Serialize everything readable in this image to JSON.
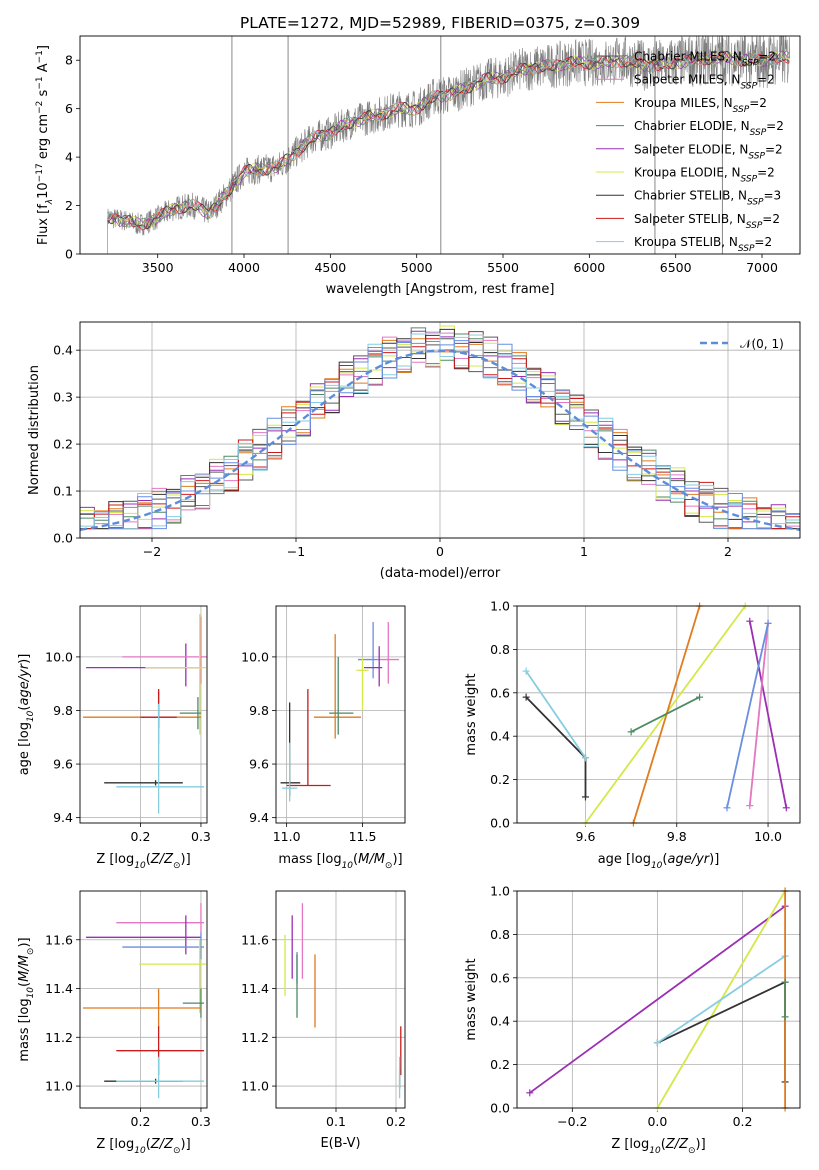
{
  "figure": {
    "title": "PLATE=1272, MJD=52989, FIBERID=0375, z=0.309"
  },
  "palette": {
    "Chabrier MILES": "#5a5a5a",
    "Salpeter MILES": "#e377c2",
    "Kroupa MILES": "#e07b1f",
    "Chabrier ELODIE": "#4f8a65",
    "Salpeter ELODIE": "#9b2fb3",
    "Kroupa ELODIE": "#d4e84a",
    "Chabrier STELIB": "#333333",
    "Salpeter STELIB": "#c91b1b",
    "Kroupa STELIB": "#86cee0",
    "extra_blue": "#6a8ee0",
    "data_gray": "#7f7f7f",
    "normal_curve": "#5b8ddb"
  },
  "chart_data": [
    {
      "id": "spectrum",
      "type": "line",
      "title": "PLATE=1272, MJD=52989, FIBERID=0375, z=0.309",
      "xlabel": "wavelength [Angstrom, rest frame]",
      "ylabel": "Flux [f$_\\lambda$10$^{-17}$ erg cm$^{-2}$ s$^{-1}$ A$^{-1}$]",
      "ylabel_parts": [
        "Flux [f",
        "λ",
        "10",
        "−17",
        " erg cm",
        "−2",
        " s",
        "−1",
        " A",
        "−1",
        "]"
      ],
      "xlim": [
        3050,
        7220
      ],
      "ylim": [
        0,
        9
      ],
      "xticks": [
        3500,
        4000,
        4500,
        5000,
        5500,
        6000,
        6500,
        7000
      ],
      "yticks": [
        0,
        2,
        4,
        6,
        8
      ],
      "grid": false,
      "legend_placement": "top-right",
      "continuum_anchors": {
        "x": [
          3210,
          3300,
          3400,
          3500,
          3600,
          3700,
          3800,
          3900,
          4000,
          4100,
          4200,
          4300,
          4400,
          4500,
          4600,
          4700,
          4800,
          4900,
          5000,
          5100,
          5200,
          5300,
          5400,
          5500,
          5600,
          5700,
          5800,
          5900,
          6000,
          6100,
          6200,
          6300,
          6400,
          6500,
          6600,
          6700,
          6800,
          6900,
          7000,
          7100,
          7160
        ],
        "y": [
          1.5,
          1.4,
          1.2,
          1.5,
          1.9,
          2.0,
          1.7,
          2.5,
          3.4,
          3.5,
          3.6,
          4.2,
          4.8,
          5.0,
          5.4,
          5.6,
          5.8,
          6.0,
          6.0,
          6.5,
          6.6,
          6.9,
          7.2,
          7.3,
          7.6,
          7.7,
          7.8,
          7.9,
          7.9,
          7.9,
          8.0,
          7.8,
          7.8,
          7.9,
          8.0,
          8.1,
          8.1,
          8.0,
          8.0,
          8.1,
          8.1
        ]
      },
      "vlines": [
        3930,
        4255,
        5140,
        6380,
        6770
      ],
      "series": [
        {
          "name": "Chabrier MILES, N$_{SSP}$=2",
          "label": "Chabrier MILES, N",
          "sub": "SSP",
          "suffix": "=2"
        },
        {
          "name": "Salpeter MILES, N$_{SSP}$=2",
          "label": "Salpeter MILES, N",
          "sub": "SSP",
          "suffix": "=2"
        },
        {
          "name": "Kroupa MILES, N$_{SSP}$=2",
          "label": "Kroupa MILES, N",
          "sub": "SSP",
          "suffix": "=2"
        },
        {
          "name": "Chabrier ELODIE, N$_{SSP}$=2",
          "label": "Chabrier ELODIE, N",
          "sub": "SSP",
          "suffix": "=2"
        },
        {
          "name": "Salpeter ELODIE, N$_{SSP}$=2",
          "label": "Salpeter ELODIE, N",
          "sub": "SSP",
          "suffix": "=2"
        },
        {
          "name": "Kroupa ELODIE, N$_{SSP}$=2",
          "label": "Kroupa ELODIE, N",
          "sub": "SSP",
          "suffix": "=2"
        },
        {
          "name": "Chabrier STELIB, N$_{SSP}$=3",
          "label": "Chabrier STELIB, N",
          "sub": "SSP",
          "suffix": "=3"
        },
        {
          "name": "Salpeter STELIB, N$_{SSP}$=2",
          "label": "Salpeter STELIB, N",
          "sub": "SSP",
          "suffix": "=2"
        },
        {
          "name": "Kroupa STELIB, N$_{SSP}$=2",
          "label": "Kroupa STELIB, N",
          "sub": "SSP",
          "suffix": "=2"
        }
      ]
    },
    {
      "id": "residuals",
      "type": "histogram",
      "xlabel": "(data-model)/error",
      "ylabel": "Normed distribution",
      "xlim": [
        -2.5,
        2.5
      ],
      "ylim": [
        0,
        0.46
      ],
      "xticks": [
        -2,
        -1,
        0,
        1,
        2
      ],
      "yticks": [
        0.0,
        0.1,
        0.2,
        0.3,
        0.4
      ],
      "grid": true,
      "bin_width": 0.1,
      "curve": {
        "name": "$\\mathcal{N}(0,1)$",
        "label": "𝒩(0, 1)",
        "mu": 0,
        "sigma": 1
      },
      "legend_placement": "top-right",
      "jitter": [
        0.03,
        -0.04,
        0.012,
        -0.02,
        0.045,
        -0.01,
        0.025,
        -0.035,
        0.005,
        0.038,
        -0.028,
        0.018,
        -0.042,
        0.032,
        -0.006,
        0.022
      ]
    },
    {
      "id": "age_vs_Z",
      "type": "errorbar",
      "xlabel": "Z [log$_{10}$(Z/Z$_\\odot$)]",
      "ylabel": "age  [log$_{10}$(age/yr)]",
      "xlim": [
        0.1,
        0.31
      ],
      "ylim": [
        9.38,
        10.19
      ],
      "xticks": [
        0.2,
        0.3
      ],
      "yticks": [
        9.4,
        9.6,
        9.8,
        10.0
      ],
      "grid": true,
      "points": [
        {
          "series": "Salpeter ELODIE",
          "x": 0.275,
          "y": 9.96,
          "xerr": [
            0.165,
            0.025
          ],
          "yerr": [
            0.07,
            0.09
          ]
        },
        {
          "series": "Salpeter MILES",
          "x": 0.3,
          "y": 10.0,
          "xerr": [
            0.13,
            0.01
          ],
          "yerr": [
            0.1,
            0.15
          ]
        },
        {
          "series": "Kroupa ELODIE",
          "x": 0.298,
          "y": 9.96,
          "xerr": [
            0.09,
            0.01
          ],
          "yerr": [
            0.25,
            0.2
          ]
        },
        {
          "series": "Kroupa MILES",
          "x": 0.23,
          "y": 9.775,
          "xerr": [
            0.125,
            0.07
          ],
          "yerr": [
            0.1,
            0.1
          ]
        },
        {
          "series": "Salpeter STELIB",
          "x": 0.23,
          "y": 9.775,
          "xerr": [
            0.03,
            0.03
          ],
          "yerr": [
            0.04,
            0.105
          ]
        },
        {
          "series": "Chabrier ELODIE",
          "x": 0.295,
          "y": 9.79,
          "xerr": [
            0.03,
            0.005
          ],
          "yerr": [
            0.06,
            0.06
          ]
        },
        {
          "series": "Chabrier STELIB",
          "x": 0.225,
          "y": 9.53,
          "xerr": [
            0.085,
            0.045
          ],
          "yerr": [
            0.01,
            0.01
          ]
        },
        {
          "series": "Kroupa STELIB",
          "x": 0.23,
          "y": 9.515,
          "xerr": [
            0.07,
            0.075
          ],
          "yerr": [
            0.1,
            0.31
          ]
        }
      ]
    },
    {
      "id": "age_vs_mass",
      "type": "errorbar",
      "xlabel": "mass [log$_{10}$(M/M$_\\odot$)]",
      "xlim": [
        10.93,
        11.78
      ],
      "ylim": [
        9.38,
        10.19
      ],
      "xticks": [
        11.0,
        11.5
      ],
      "yticks": [
        9.4,
        9.6,
        9.8,
        10.0
      ],
      "grid": true,
      "points": [
        {
          "series": "Salpeter MILES",
          "x": 11.67,
          "y": 9.99,
          "xerr": [
            0.07,
            0.07
          ],
          "yerr": [
            0.09,
            0.14
          ]
        },
        {
          "series": "extra_blue",
          "x": 11.57,
          "y": 9.99,
          "xerr": [
            0.1,
            0.03
          ],
          "yerr": [
            0.07,
            0.14
          ]
        },
        {
          "series": "Salpeter ELODIE",
          "x": 11.61,
          "y": 9.96,
          "xerr": [
            0.1,
            0.02
          ],
          "yerr": [
            0.07,
            0.08
          ]
        },
        {
          "series": "Kroupa ELODIE",
          "x": 11.5,
          "y": 9.95,
          "xerr": [
            0.04,
            0.04
          ],
          "yerr": [
            0.15,
            0.05
          ]
        },
        {
          "series": "Kroupa MILES",
          "x": 11.32,
          "y": 9.775,
          "xerr": [
            0.14,
            0.17
          ],
          "yerr": [
            0.08,
            0.31
          ]
        },
        {
          "series": "Chabrier ELODIE",
          "x": 11.34,
          "y": 9.79,
          "xerr": [
            0.06,
            0.1
          ],
          "yerr": [
            0.08,
            0.21
          ]
        },
        {
          "series": "Salpeter STELIB",
          "x": 11.14,
          "y": 9.52,
          "xerr": [
            0.14,
            0.15
          ],
          "yerr": [
            0.0,
            0.36
          ]
        },
        {
          "series": "Chabrier STELIB",
          "x": 11.02,
          "y": 9.53,
          "xerr": [
            0.06,
            0.07
          ],
          "yerr": [
            0.05,
            0.3
          ]
        },
        {
          "series": "Kroupa STELIB",
          "x": 11.02,
          "y": 9.51,
          "xerr": [
            0.05,
            0.05
          ],
          "yerr": [
            0.05,
            0.17
          ]
        }
      ]
    },
    {
      "id": "mass_weight_vs_age",
      "type": "line",
      "xlabel": "age  [log$_{10}$(age/yr)]",
      "ylabel": "mass weight",
      "xlim": [
        9.45,
        10.07
      ],
      "ylim": [
        0,
        1
      ],
      "xticks": [
        9.6,
        9.8,
        10.0
      ],
      "yticks": [
        0.0,
        0.2,
        0.4,
        0.6,
        0.8,
        1.0
      ],
      "grid": true,
      "lines": [
        {
          "series": "Kroupa ELODIE",
          "x": [
            9.6,
            9.95
          ],
          "y": [
            0.0,
            1.0
          ]
        },
        {
          "series": "Kroupa MILES",
          "x": [
            9.705,
            9.85
          ],
          "y": [
            0.0,
            1.0
          ]
        },
        {
          "series": "Salpeter ELODIE",
          "x": [
            9.96,
            10.04
          ],
          "y": [
            0.93,
            0.07
          ]
        },
        {
          "series": "Salpeter MILES",
          "x": [
            9.96,
            10.0
          ],
          "y": [
            0.08,
            0.92
          ]
        },
        {
          "series": "extra_blue",
          "x": [
            9.91,
            10.0
          ],
          "y": [
            0.07,
            0.92
          ]
        },
        {
          "series": "Chabrier ELODIE",
          "x": [
            9.7,
            9.85
          ],
          "y": [
            0.42,
            0.58
          ]
        },
        {
          "series": "Chabrier STELIB",
          "x": [
            9.47,
            9.6,
            9.6
          ],
          "y": [
            0.58,
            0.3,
            0.12
          ]
        },
        {
          "series": "Kroupa STELIB",
          "x": [
            9.47,
            9.6
          ],
          "y": [
            0.7,
            0.3
          ]
        }
      ]
    },
    {
      "id": "mass_vs_Z",
      "type": "errorbar",
      "xlabel": "Z [log$_{10}$(Z/Z$_\\odot$)]",
      "ylabel": "mass [log$_{10}$(M/M$_\\odot$)]",
      "xlim": [
        0.1,
        0.31
      ],
      "ylim": [
        10.91,
        11.8
      ],
      "xticks": [
        0.2,
        0.3
      ],
      "yticks": [
        11.0,
        11.2,
        11.4,
        11.6
      ],
      "grid": true,
      "points": [
        {
          "series": "Salpeter MILES",
          "x": 0.3,
          "y": 11.67,
          "xerr": [
            0.14,
            0.005
          ],
          "yerr": [
            0.04,
            0.08
          ]
        },
        {
          "series": "Salpeter ELODIE",
          "x": 0.275,
          "y": 11.61,
          "xerr": [
            0.165,
            0.025
          ],
          "yerr": [
            0.07,
            0.09
          ]
        },
        {
          "series": "extra_blue",
          "x": 0.3,
          "y": 11.57,
          "xerr": [
            0.13,
            0.005
          ],
          "yerr": [
            0.05,
            0.06
          ]
        },
        {
          "series": "Kroupa ELODIE",
          "x": 0.298,
          "y": 11.5,
          "xerr": [
            0.1,
            0.01
          ],
          "yerr": [
            0.2,
            0.1
          ]
        },
        {
          "series": "Chabrier ELODIE",
          "x": 0.3,
          "y": 11.34,
          "xerr": [
            0.03,
            0.005
          ],
          "yerr": [
            0.06,
            0.06
          ]
        },
        {
          "series": "Kroupa MILES",
          "x": 0.23,
          "y": 11.32,
          "xerr": [
            0.125,
            0.07
          ],
          "yerr": [
            0.08,
            0.08
          ]
        },
        {
          "series": "Salpeter STELIB",
          "x": 0.23,
          "y": 11.145,
          "xerr": [
            0.07,
            0.075
          ],
          "yerr": [
            0.1,
            0.1
          ]
        },
        {
          "series": "Chabrier STELIB",
          "x": 0.225,
          "y": 11.02,
          "xerr": [
            0.085,
            0.045
          ],
          "yerr": [
            0.01,
            0.01
          ]
        },
        {
          "series": "Kroupa STELIB",
          "x": 0.23,
          "y": 11.02,
          "xerr": [
            0.07,
            0.075
          ],
          "yerr": [
            0.07,
            0.1
          ]
        }
      ]
    },
    {
      "id": "mass_vs_ebv",
      "type": "errorbar",
      "xlabel": "E(B-V)",
      "xlim": [
        0.0,
        0.215
      ],
      "ylim": [
        10.91,
        11.8
      ],
      "xticks": [
        0.1,
        0.2
      ],
      "yticks": [
        11.0,
        11.2,
        11.4,
        11.6
      ],
      "grid": true,
      "points": [
        {
          "series": "Kroupa ELODIE",
          "x": 0.015,
          "y": 11.5,
          "yerr": [
            0.13,
            0.12
          ]
        },
        {
          "series": "Salpeter ELODIE",
          "x": 0.027,
          "y": 11.58,
          "yerr": [
            0.14,
            0.12
          ]
        },
        {
          "series": "extra_blue",
          "x": 0.035,
          "y": 11.48,
          "yerr": [
            0.06,
            0.07
          ]
        },
        {
          "series": "Chabrier ELODIE",
          "x": 0.035,
          "y": 11.4,
          "yerr": [
            0.12,
            0.14
          ]
        },
        {
          "series": "Salpeter MILES",
          "x": 0.044,
          "y": 11.57,
          "yerr": [
            0.13,
            0.18
          ]
        },
        {
          "series": "Kroupa MILES",
          "x": 0.065,
          "y": 11.38,
          "yerr": [
            0.14,
            0.16
          ]
        },
        {
          "series": "Salpeter STELIB",
          "x": 0.208,
          "y": 11.145,
          "yerr": [
            0.1,
            0.1
          ]
        },
        {
          "series": "Chabrier STELIB",
          "x": 0.206,
          "y": 11.03,
          "yerr": [
            0.04,
            0.04
          ]
        },
        {
          "series": "Kroupa STELIB",
          "x": 0.206,
          "y": 11.02,
          "yerr": [
            0.07,
            0.1
          ]
        }
      ]
    },
    {
      "id": "mass_weight_vs_Z",
      "type": "line",
      "xlabel": "Z [log$_{10}$(Z/Z$_\\odot$)]",
      "ylabel": "mass weight",
      "xlim": [
        -0.33,
        0.335
      ],
      "ylim": [
        0,
        1
      ],
      "xticks": [
        -0.2,
        0.0,
        0.2
      ],
      "yticks": [
        0.0,
        0.2,
        0.4,
        0.6,
        0.8,
        1.0
      ],
      "grid": true,
      "lines": [
        {
          "series": "Salpeter ELODIE",
          "x": [
            -0.3,
            0.3
          ],
          "y": [
            0.07,
            0.93
          ]
        },
        {
          "series": "Kroupa ELODIE",
          "x": [
            0.0,
            0.3
          ],
          "y": [
            0.0,
            1.0
          ]
        },
        {
          "series": "Chabrier STELIB",
          "x": [
            0.0,
            0.3,
            0.3
          ],
          "y": [
            0.3,
            0.58,
            0.12
          ]
        },
        {
          "series": "Kroupa STELIB",
          "x": [
            0.0,
            0.3
          ],
          "y": [
            0.3,
            0.7
          ]
        },
        {
          "series": "Kroupa MILES",
          "x": [
            0.3,
            0.3
          ],
          "y": [
            0.0,
            1.0
          ]
        },
        {
          "series": "Chabrier ELODIE",
          "x": [
            0.3,
            0.3
          ],
          "y": [
            0.42,
            0.58
          ]
        }
      ]
    }
  ]
}
